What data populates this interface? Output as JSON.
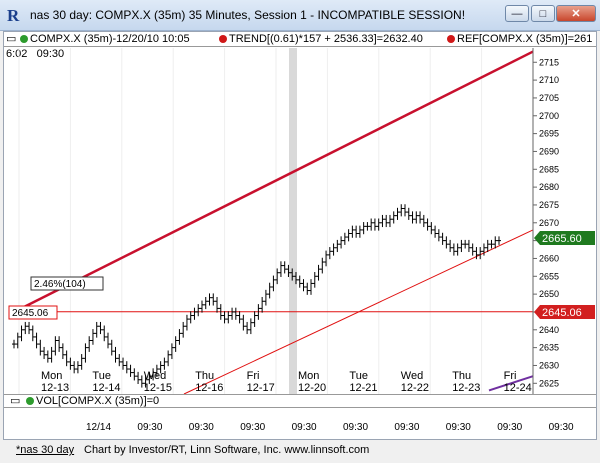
{
  "window": {
    "title": "nas 30 day: COMPX.X (35m) 35 Minutes, Session 1 - INCOMPATIBLE SESSION!",
    "min_label": "—",
    "max_label": "□",
    "close_label": "✕"
  },
  "legend": {
    "symbol_text": "COMPX.X (35m)-12/20/10 10:05",
    "trend_text": "TREND[(0.61)*157 + 2536.33]=2632.40",
    "ref_text": "REF[COMPX.X (35m)]=261"
  },
  "toolbar": {
    "time_left": "6:02",
    "time_right": "09:30"
  },
  "chart_data": {
    "type": "candlestick",
    "y_ticks": [
      2625,
      2630,
      2635,
      2640,
      2645,
      2650,
      2655,
      2660,
      2665,
      2670,
      2675,
      2680,
      2685,
      2690,
      2695,
      2700,
      2705,
      2710,
      2715
    ],
    "ylim": [
      2622,
      2719
    ],
    "day_labels": [
      {
        "day": "Mon",
        "date": "12-13"
      },
      {
        "day": "Tue",
        "date": "12-14"
      },
      {
        "day": "Wed",
        "date": "12-15"
      },
      {
        "day": "Thu",
        "date": "12-16"
      },
      {
        "day": "Fri",
        "date": "12-17"
      },
      {
        "day": "Mon",
        "date": "12-20"
      },
      {
        "day": "Tue",
        "date": "12-21"
      },
      {
        "day": "Wed",
        "date": "12-22"
      },
      {
        "day": "Thu",
        "date": "12-23"
      },
      {
        "day": "Fri",
        "date": "12-24"
      }
    ],
    "bottom_axis_labels": [
      "12/14",
      "09:30",
      "09:30",
      "09:30",
      "09:30",
      "09:30",
      "09:30",
      "09:30",
      "09:30",
      "09:30"
    ],
    "price_levels": {
      "last": "2665.60",
      "ref": "2645.06"
    },
    "ref_line_label": "2645.06",
    "annotation": "2.46%(104)",
    "close_series": [
      2636,
      2638,
      2640,
      2641,
      2640,
      2638,
      2636,
      2634,
      2633,
      2632,
      2634,
      2637,
      2635,
      2633,
      2631,
      2630,
      2629,
      2630,
      2632,
      2635,
      2637,
      2639,
      2641,
      2640,
      2638,
      2636,
      2634,
      2632,
      2631,
      2630,
      2629,
      2628,
      2627,
      2626,
      2625,
      2626,
      2627,
      2628,
      2629,
      2630,
      2631,
      2633,
      2635,
      2637,
      2639,
      2641,
      2643,
      2644,
      2645,
      2646,
      2647,
      2648,
      2649,
      2648,
      2646,
      2644,
      2643,
      2644,
      2645,
      2644,
      2643,
      2641,
      2640,
      2642,
      2644,
      2646,
      2648,
      2650,
      2652,
      2654,
      2656,
      2658,
      2657,
      2656,
      2655,
      2654,
      2653,
      2652,
      2651,
      2653,
      2655,
      2657,
      2659,
      2661,
      2662,
      2663,
      2664,
      2665,
      2666,
      2667,
      2668,
      2667,
      2668,
      2669,
      2669,
      2670,
      2669,
      2670,
      2671,
      2670,
      2671,
      2672,
      2673,
      2674,
      2673,
      2672,
      2671,
      2672,
      2671,
      2670,
      2669,
      2668,
      2667,
      2666,
      2665,
      2664,
      2663,
      2662,
      2663,
      2664,
      2664,
      2663,
      2662,
      2661,
      2662,
      2663,
      2664,
      2664,
      2665,
      2665
    ],
    "vol_label": "VOL[COMPX.X (35m)]=0",
    "series_colors": {
      "trend_upper": "#c8102e",
      "trend_lower": "#e01010",
      "ref": "#e01010",
      "volume_marker": "#7030a0",
      "accent": "#1b3f8c"
    }
  },
  "status": {
    "tab": "*nas 30 day",
    "credit": "Chart by Investor/RT, Linn Software, Inc. www.linnsoft.com"
  }
}
